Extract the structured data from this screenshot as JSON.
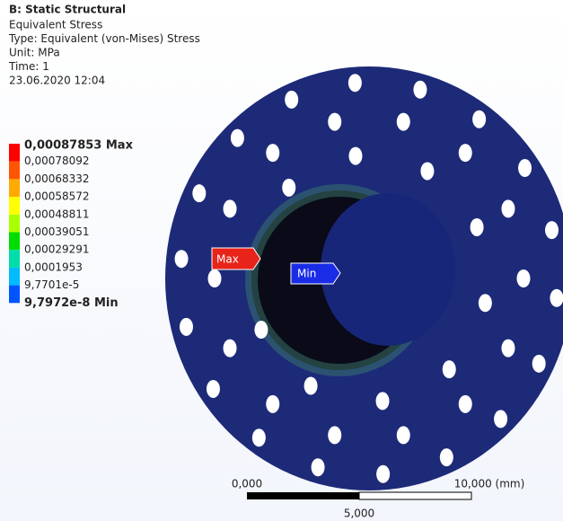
{
  "header": {
    "title": "B: Static Structural",
    "lines": [
      "Equivalent Stress",
      "Type: Equivalent (von-Mises) Stress",
      "Unit: MPa",
      "Time: 1",
      "23.06.2020 12:04"
    ]
  },
  "legend": {
    "labels": [
      "0,00087853 Max",
      "0,00078092",
      "0,00068332",
      "0,00058572",
      "0,00048811",
      "0,00039051",
      "0,00029291",
      "0,0001953",
      "9,7701e-5",
      "9,7972e-8 Min"
    ],
    "colors": [
      "#ff0000",
      "#ff5500",
      "#ffaa00",
      "#ffff00",
      "#aaff00",
      "#00dd00",
      "#00ddaa",
      "#00bbff",
      "#0055ff"
    ]
  },
  "probes": {
    "max": "Max",
    "min": "Min"
  },
  "scale": {
    "start": "0,000",
    "end": "10,000 (mm)",
    "mid": "5,000"
  }
}
